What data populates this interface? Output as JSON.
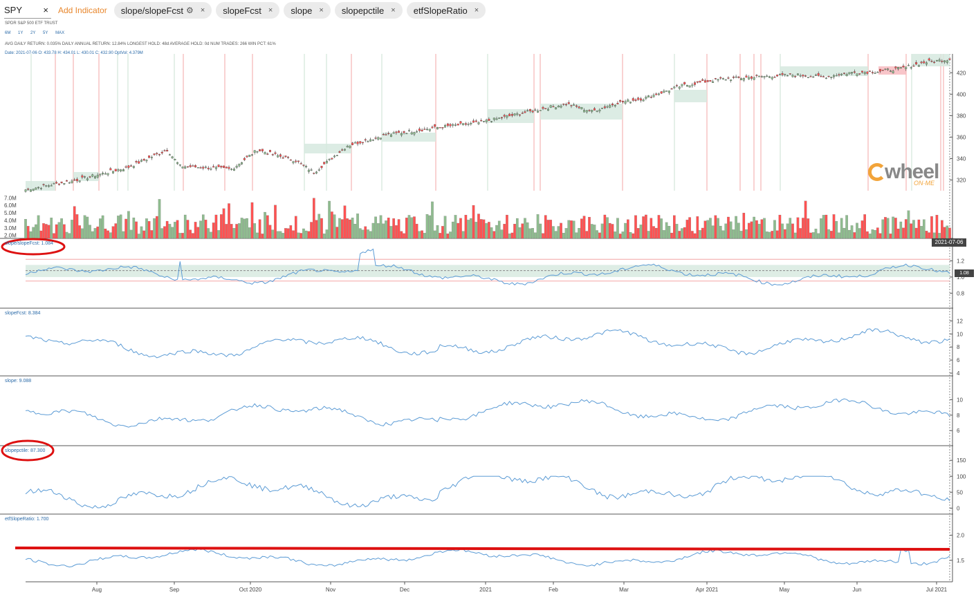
{
  "toolbar": {
    "ticker": "SPY",
    "ticker_close": "×",
    "add_indicator": "Add Indicator",
    "chips": [
      {
        "label": "slope/slopeFcst",
        "gear": true
      },
      {
        "label": "slopeFcst"
      },
      {
        "label": "slope"
      },
      {
        "label": "slopepctile"
      },
      {
        "label": "etfSlopeRatio"
      }
    ],
    "close_glyph": "×",
    "gear_glyph": "⚙"
  },
  "info": {
    "name": "SPDR S&P 500 ETF TRUST",
    "ranges": [
      "6M",
      "1Y",
      "2Y",
      "5Y",
      "MAX"
    ],
    "stats": "AVG DAILY RETURN: 0.035%   DAILY ANNUAL RETURN: 12.84%   LONGEST HOLD: 48d   AVERAGE HOLD: 0d   NUM TRADES: 266   WIN PCT: 61%",
    "date_bar": "Date: 2021-07-06 O: 433.78 H: 434.01 L: 430.01 C: 432.90 OptVol: 4.379M"
  },
  "badges": {
    "date": "2021-07-06",
    "ratio": "1.08"
  },
  "logo": {
    "word": "wheel",
    "sub": "ON·ME"
  },
  "panel_labels": {
    "p1": "slope/slopeFcst: 1.084",
    "p2": "slopeFcst: 8.384",
    "p3": "slope: 9.088",
    "p4": "slopepctile: 87.300",
    "p5": "etfSlopeRatio: 1.700"
  },
  "axes": {
    "price": [
      "420",
      "400",
      "380",
      "360",
      "340",
      "320"
    ],
    "volume": [
      "7.0M",
      "6.0M",
      "5.0M",
      "4.0M",
      "3.0M",
      "2.0M"
    ],
    "p1": [
      "1.2",
      "1.0",
      "0.8"
    ],
    "p2": [
      "12",
      "10",
      "8",
      "6",
      "4"
    ],
    "p3": [
      "10",
      "8",
      "6"
    ],
    "p4": [
      "150",
      "100",
      "50",
      "0"
    ],
    "p5": [
      "2.0",
      "1.5"
    ],
    "months": [
      "Aug",
      "Sep",
      "Oct 2020",
      "Nov",
      "Dec",
      "2021",
      "Feb",
      "Mar",
      "Apr 2021",
      "May",
      "Jun",
      "Jul 2021"
    ]
  },
  "colors": {
    "up": "#8fbc8f",
    "down": "#ff5252",
    "line": "#5b9bd5",
    "zone": "#d6e9df",
    "red_zone": "#f6b7bb",
    "annot": "#dd1111"
  },
  "chart_data": {
    "type": "line",
    "title": "SPY",
    "x_ticks": [
      "Aug",
      "Sep",
      "Oct 2020",
      "Nov",
      "Dec",
      "2021",
      "Feb",
      "Mar",
      "Apr 2021",
      "May",
      "Jun",
      "Jul 2021"
    ],
    "series": [
      {
        "name": "SPY close",
        "approx_points": [
          [
            0,
            311
          ],
          [
            20,
            320
          ],
          [
            40,
            332
          ],
          [
            55,
            348
          ],
          [
            60,
            333
          ],
          [
            80,
            330
          ],
          [
            90,
            348
          ],
          [
            105,
            338
          ],
          [
            112,
            327
          ],
          [
            125,
            352
          ],
          [
            140,
            362
          ],
          [
            160,
            369
          ],
          [
            175,
            373
          ],
          [
            185,
            378
          ],
          [
            200,
            386
          ],
          [
            210,
            391
          ],
          [
            220,
            384
          ],
          [
            230,
            392
          ],
          [
            240,
            396
          ],
          [
            255,
            408
          ],
          [
            270,
            414
          ],
          [
            290,
            417
          ],
          [
            300,
            418
          ],
          [
            310,
            416
          ],
          [
            320,
            420
          ],
          [
            330,
            421
          ],
          [
            340,
            424
          ],
          [
            350,
            430
          ],
          [
            360,
            433
          ]
        ]
      },
      {
        "name": "slope/slopeFcst",
        "ylim": [
          0.7,
          1.35
        ],
        "last": 1.084
      },
      {
        "name": "slopeFcst",
        "ylim": [
          4,
          13
        ],
        "last": 8.384
      },
      {
        "name": "slope",
        "ylim": [
          4.5,
          12
        ],
        "last": 9.088
      },
      {
        "name": "slopepctile",
        "ylim": [
          -10,
          170
        ],
        "last": 87.3
      },
      {
        "name": "etfSlopeRatio",
        "ylim": [
          1.1,
          2.2
        ],
        "last": 1.7
      }
    ]
  }
}
